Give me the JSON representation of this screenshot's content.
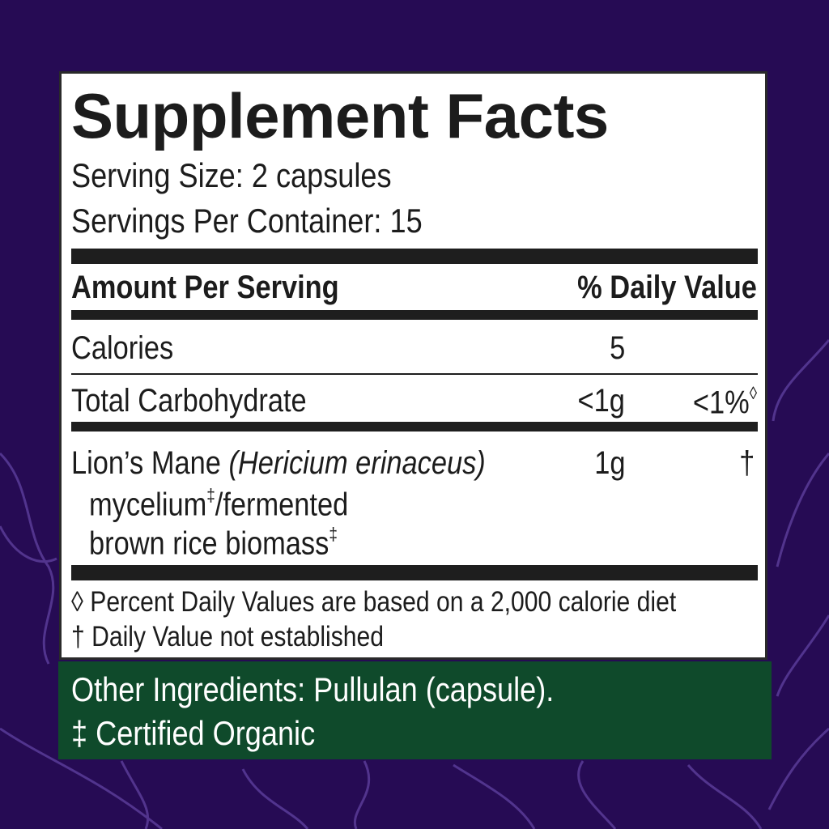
{
  "colors": {
    "background": "#260b54",
    "panel": "#ffffff",
    "other_ingredients_bg": "#0f4a2b",
    "text": "#1c1c1c"
  },
  "title": "Supplement Facts",
  "serving_size": "Serving Size: 2 capsules",
  "servings_per_container": "Servings Per Container: 15",
  "header": {
    "amount": "Amount Per Serving",
    "dv": "% Daily Value"
  },
  "rows": [
    {
      "name": "Calories",
      "amount": "5",
      "dv": ""
    },
    {
      "name": "Total Carbohydrate",
      "amount": "<1g",
      "dv": "<1%",
      "dv_mark": "◊"
    },
    {
      "name": "Lion’s Mane",
      "latin": "(Hericium erinaceus)",
      "line2": "mycelium",
      "line2_mark": "‡",
      "line2_rest": "/fermented",
      "line3": "brown rice biomass",
      "line3_mark": "‡",
      "amount": "1g",
      "dv": "†"
    }
  ],
  "footnotes": [
    "◊ Percent Daily Values are based on a 2,000 calorie diet",
    "† Daily Value not established"
  ],
  "other_ingredients": "Other Ingredients: Pullulan (capsule).",
  "organic_note": "‡ Certified Organic"
}
